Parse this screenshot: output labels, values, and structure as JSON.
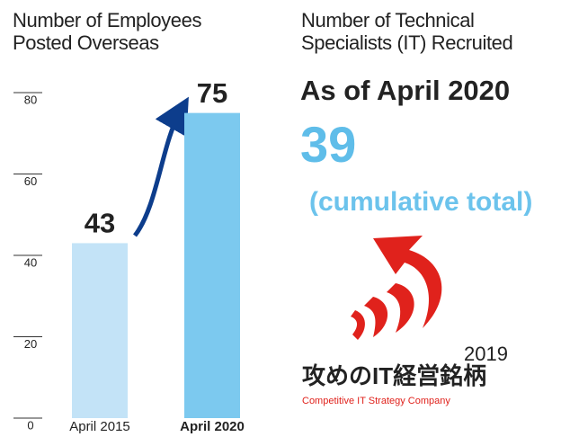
{
  "chart_data": {
    "type": "bar",
    "title": "Number of Employees Posted Overseas",
    "categories": [
      "April 2015",
      "April 2020"
    ],
    "values": [
      43,
      75
    ],
    "colors": [
      "#c3e3f7",
      "#7cc9ef"
    ],
    "ylim": [
      0,
      80
    ],
    "yticks": [
      0,
      20,
      40,
      60,
      80
    ],
    "grid": true
  },
  "panel": {
    "title": "Number of Technical Specialists (IT) Recruited",
    "date": "As of April 2020",
    "value": "39",
    "note": "(cumulative total)",
    "logo": {
      "year": "2019",
      "name": "攻めのIT経営銘柄",
      "subtitle": "Competitive IT Strategy Company"
    }
  }
}
